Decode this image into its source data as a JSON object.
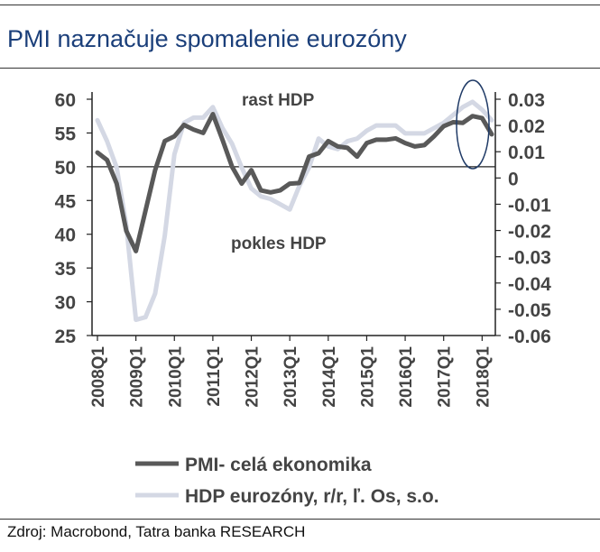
{
  "title": "PMI naznačuje spomalenie eurozóny",
  "source": "Zdroj: Macrobond, Tatra banka RESEARCH",
  "colors": {
    "title": "#1b3f7a",
    "pmi": "#595959",
    "gdp": "#d4d8e4",
    "ellipse": "#1f3a66",
    "text": "#444444"
  },
  "chart_data": {
    "type": "line",
    "title": "",
    "xlabel": "",
    "ylabel": "",
    "x": [
      "2008Q1",
      "2008Q2",
      "2008Q3",
      "2008Q4",
      "2009Q1",
      "2009Q2",
      "2009Q3",
      "2009Q4",
      "2010Q1",
      "2010Q2",
      "2010Q3",
      "2010Q4",
      "2011Q1",
      "2011Q2",
      "2011Q3",
      "2011Q4",
      "2012Q1",
      "2012Q2",
      "2012Q3",
      "2012Q4",
      "2013Q1",
      "2013Q2",
      "2013Q3",
      "2013Q4",
      "2014Q1",
      "2014Q2",
      "2014Q3",
      "2014Q4",
      "2015Q1",
      "2015Q2",
      "2015Q3",
      "2015Q4",
      "2016Q1",
      "2016Q2",
      "2016Q3",
      "2016Q4",
      "2017Q1",
      "2017Q2",
      "2017Q3",
      "2017Q4",
      "2018Q1",
      "2018Q2"
    ],
    "x_ticks": [
      "2008Q1",
      "2009Q1",
      "2010Q1",
      "2011Q1",
      "2012Q1",
      "2013Q1",
      "2014Q1",
      "2015Q1",
      "2016Q1",
      "2017Q1",
      "2018Q1"
    ],
    "left_axis": {
      "ylim": [
        25,
        60
      ],
      "ticks": [
        "60",
        "55",
        "50",
        "45",
        "40",
        "35",
        "30",
        "25"
      ],
      "values": [
        60,
        55,
        50,
        45,
        40,
        35,
        30,
        25
      ]
    },
    "right_axis": {
      "ylim": [
        -0.06,
        0.03
      ],
      "ticks": [
        "0.03",
        "0.02",
        "0.01",
        "0",
        "-0.01",
        "-0.02",
        "-0.03",
        "-0.04",
        "-0.05",
        "-0.06"
      ],
      "values": [
        0.03,
        0.02,
        0.01,
        0,
        -0.01,
        -0.02,
        -0.03,
        -0.04,
        -0.05,
        -0.06
      ]
    },
    "reference_line": 50,
    "series": [
      {
        "name": "PMI- celá ekonomika",
        "axis": "left",
        "values": [
          52.1,
          51.0,
          47.5,
          40.5,
          37.5,
          43.5,
          49.5,
          53.8,
          54.5,
          56.2,
          55.5,
          55.0,
          57.8,
          54.0,
          50.0,
          47.5,
          49.5,
          46.5,
          46.2,
          46.5,
          47.5,
          47.6,
          51.5,
          52.0,
          53.8,
          53.0,
          52.8,
          51.5,
          53.5,
          54.0,
          54.0,
          54.2,
          53.5,
          53.0,
          53.2,
          54.5,
          56.0,
          56.6,
          56.5,
          57.5,
          57.2,
          54.8
        ]
      },
      {
        "name": "HDP eurozóny, r/r, ľ. Os, s.o.",
        "axis": "right",
        "values": [
          0.022,
          0.014,
          0.004,
          -0.018,
          -0.054,
          -0.053,
          -0.044,
          -0.022,
          0.009,
          0.021,
          0.023,
          0.023,
          0.027,
          0.019,
          0.013,
          0.004,
          -0.004,
          -0.007,
          -0.008,
          -0.01,
          -0.012,
          -0.003,
          0.004,
          0.015,
          0.012,
          0.011,
          0.014,
          0.015,
          0.018,
          0.02,
          0.02,
          0.02,
          0.017,
          0.017,
          0.017,
          0.019,
          0.021,
          0.024,
          0.027,
          0.029,
          0.026,
          0.022
        ]
      }
    ],
    "annotations": [
      "rast HDP",
      "pokles HDP"
    ],
    "legend_position": "bottom"
  }
}
